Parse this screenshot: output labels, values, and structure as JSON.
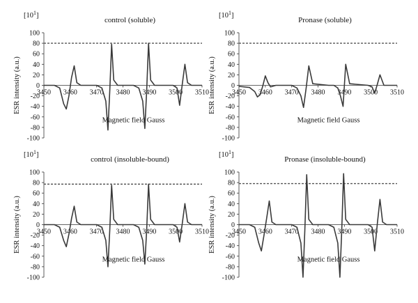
{
  "chart_data": [
    {
      "type": "line",
      "title": "control (soluble)",
      "multiplier": "[10",
      "multiplier_exp": "1",
      "multiplier_close": "]",
      "xlabel": "Magnetic field Gauss",
      "ylabel": "ESR intensity (a.u.)",
      "xlim": [
        3450,
        3510
      ],
      "ylim": [
        -100,
        100
      ],
      "xticks": [
        "3450",
        "3460",
        "3470",
        "3480",
        "3490",
        "3500",
        "3510"
      ],
      "yticks": [
        "100",
        "80",
        "60",
        "40",
        "20",
        "0",
        "-20",
        "-40",
        "-60",
        "-80",
        "-100"
      ],
      "reference_line": 80,
      "series": [
        {
          "x": [
            3450,
            3454,
            3456,
            3457.5,
            3458.5,
            3459.5,
            3460.5,
            3461.5,
            3462.5,
            3464,
            3470,
            3472,
            3473.5,
            3474.3,
            3475,
            3475.7,
            3476.5,
            3478,
            3484,
            3486,
            3487.5,
            3488.3,
            3489,
            3489.7,
            3490.5,
            3492,
            3499,
            3500.5,
            3501.5,
            3502.5,
            3503.5,
            3504.5,
            3506,
            3510
          ],
          "y": [
            0,
            0,
            -5,
            -35,
            -45,
            -20,
            15,
            37,
            5,
            0,
            0,
            -5,
            -30,
            -85,
            -10,
            78,
            10,
            0,
            0,
            -5,
            -30,
            -82,
            -10,
            80,
            10,
            0,
            0,
            -5,
            -38,
            2,
            40,
            5,
            0,
            0
          ]
        }
      ]
    },
    {
      "type": "line",
      "title": "Pronase (soluble)",
      "multiplier": "[10",
      "multiplier_exp": "1",
      "multiplier_close": "]",
      "xlabel": "Magnetic field Gauss",
      "ylabel": "ESR intensity (a.u.)",
      "xlim": [
        3450,
        3510
      ],
      "ylim": [
        -100,
        100
      ],
      "xticks": [
        "3450",
        "3460",
        "3470",
        "3480",
        "3490",
        "3500",
        "3510"
      ],
      "yticks": [
        "100",
        "80",
        "60",
        "40",
        "20",
        "0",
        "-20",
        "-40",
        "-60",
        "-80",
        "-100"
      ],
      "reference_line": 80,
      "series": [
        {
          "x": [
            3450,
            3454,
            3456,
            3457,
            3458,
            3459,
            3460,
            3461,
            3462,
            3464,
            3470,
            3472,
            3473.5,
            3474.5,
            3475.5,
            3476.5,
            3478,
            3484,
            3486,
            3487.5,
            3488.5,
            3489.5,
            3490.5,
            3492,
            3499,
            3500.5,
            3501.5,
            3502.5,
            3503.5,
            3505,
            3510
          ],
          "y": [
            -2,
            -4,
            -12,
            -22,
            -18,
            -2,
            18,
            5,
            -3,
            0,
            0,
            -5,
            -20,
            -42,
            -5,
            37,
            3,
            0,
            0,
            -5,
            -20,
            -40,
            40,
            3,
            0,
            -3,
            -15,
            2,
            20,
            0,
            0
          ]
        }
      ]
    },
    {
      "type": "line",
      "title": "control (insoluble-bound)",
      "multiplier": "[10",
      "multiplier_exp": "1",
      "multiplier_close": "]",
      "xlabel": "Magnetic field Gauss",
      "ylabel": "ESR intensity (a.u.)",
      "xlim": [
        3450,
        3510
      ],
      "ylim": [
        -100,
        100
      ],
      "xticks": [
        "3450",
        "3460",
        "3470",
        "3480",
        "3490",
        "3500",
        "3510"
      ],
      "yticks": [
        "100",
        "80",
        "60",
        "40",
        "20",
        "0",
        "-20",
        "-40",
        "-60",
        "-80",
        "-100"
      ],
      "reference_line": 77,
      "series": [
        {
          "x": [
            3450,
            3454,
            3456,
            3457.5,
            3458.5,
            3459.5,
            3460.5,
            3461.5,
            3462.5,
            3464,
            3470,
            3472,
            3473.5,
            3474.3,
            3475,
            3475.7,
            3476.5,
            3478,
            3484,
            3486,
            3487.5,
            3488.3,
            3489,
            3489.7,
            3490.5,
            3492,
            3499,
            3500.5,
            3501.5,
            3502.5,
            3503.5,
            3504.5,
            3506,
            3510
          ],
          "y": [
            0,
            0,
            -5,
            -30,
            -42,
            -18,
            12,
            35,
            5,
            0,
            0,
            -5,
            -30,
            -80,
            -10,
            75,
            10,
            0,
            0,
            -5,
            -30,
            -75,
            -10,
            77,
            10,
            0,
            0,
            -5,
            -33,
            2,
            40,
            5,
            0,
            0
          ]
        }
      ]
    },
    {
      "type": "line",
      "title": "Pronase (insoluble-bound)",
      "multiplier": "[10",
      "multiplier_exp": "1",
      "multiplier_close": "]",
      "xlabel": "Magnetic field Gauss",
      "ylabel": "ESR intensity (a.u.)",
      "xlim": [
        3450,
        3510
      ],
      "ylim": [
        -100,
        100
      ],
      "xticks": [
        "3450",
        "3460",
        "3470",
        "3480",
        "3490",
        "3500",
        "3510"
      ],
      "yticks": [
        "100",
        "80",
        "60",
        "40",
        "20",
        "0",
        "-20",
        "-40",
        "-60",
        "-80",
        "-100"
      ],
      "reference_line": 78,
      "series": [
        {
          "x": [
            3450,
            3454,
            3456,
            3457.5,
            3458.5,
            3459.5,
            3460.5,
            3461.5,
            3462.5,
            3464,
            3470,
            3472,
            3473.5,
            3474.3,
            3475,
            3475.7,
            3476.5,
            3478,
            3484,
            3486,
            3487.5,
            3488.3,
            3489,
            3489.7,
            3490.5,
            3492,
            3499,
            3500.5,
            3501.5,
            3502.5,
            3503.5,
            3504.5,
            3506,
            3510
          ],
          "y": [
            0,
            0,
            -5,
            -35,
            -50,
            -20,
            12,
            45,
            5,
            0,
            0,
            -5,
            -35,
            -100,
            -10,
            95,
            10,
            0,
            0,
            -5,
            -35,
            -100,
            -10,
            97,
            10,
            0,
            0,
            -5,
            -50,
            2,
            48,
            5,
            0,
            0
          ]
        }
      ]
    }
  ]
}
